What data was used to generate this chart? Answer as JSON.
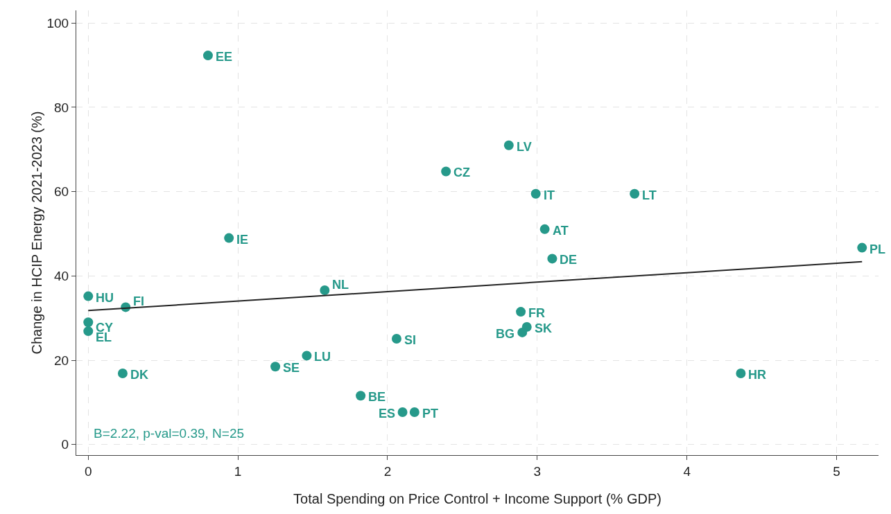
{
  "chart_data": {
    "type": "scatter",
    "xlabel": "Total Spending on Price Control + Income Support (% GDP)",
    "ylabel": "Change in HCIP Energy 2021-2023 (%)",
    "xlim": [
      -0.08,
      5.28
    ],
    "ylim": [
      -2.5,
      103
    ],
    "xticks": [
      0,
      1,
      2,
      3,
      4,
      5
    ],
    "yticks": [
      0,
      20,
      40,
      60,
      80,
      100
    ],
    "grid": true,
    "marker": "circle",
    "series": [
      {
        "color": "#26998a",
        "x": [
          0.8,
          2.81,
          2.39,
          2.99,
          3.65,
          3.05,
          0.94,
          5.17,
          3.1,
          1.58,
          0,
          0.25,
          2.89,
          0,
          2.93,
          0,
          2.9,
          2.06,
          1.46,
          1.25,
          0.23,
          4.36,
          1.82,
          2.1,
          2.18
        ],
        "values": [
          92.3,
          71.0,
          64.8,
          59.5,
          59.5,
          51.1,
          49.0,
          46.7,
          44.1,
          36.6,
          35.2,
          32.6,
          31.5,
          29.0,
          27.9,
          26.9,
          26.6,
          25.1,
          21.1,
          18.5,
          16.9,
          16.9,
          11.6,
          7.7,
          7.7
        ]
      },
      {
        "type": "line",
        "marker": "none",
        "color": "#222222",
        "x": [
          0,
          5.17
        ],
        "values": [
          31.8,
          43.4
        ]
      }
    ],
    "annotations": [
      {
        "text": "EE",
        "x": 0.8,
        "y": 92.3
      },
      {
        "text": "LV",
        "x": 2.81,
        "y": 71.0
      },
      {
        "text": "CZ",
        "x": 2.39,
        "y": 64.8
      },
      {
        "text": "IT",
        "x": 2.99,
        "y": 59.5
      },
      {
        "text": "LT",
        "x": 3.65,
        "y": 59.5
      },
      {
        "text": "AT",
        "x": 3.05,
        "y": 51.1
      },
      {
        "text": "IE",
        "x": 0.94,
        "y": 49.0
      },
      {
        "text": "PL",
        "x": 5.17,
        "y": 46.7
      },
      {
        "text": "DE",
        "x": 3.1,
        "y": 44.1
      },
      {
        "text": "NL",
        "x": 1.58,
        "y": 36.6
      },
      {
        "text": "HU",
        "x": 0,
        "y": 35.2
      },
      {
        "text": "FI",
        "x": 0.25,
        "y": 32.6
      },
      {
        "text": "FR",
        "x": 2.89,
        "y": 31.5
      },
      {
        "text": "CY",
        "x": 0,
        "y": 29.0
      },
      {
        "text": "SK",
        "x": 2.93,
        "y": 27.9
      },
      {
        "text": "EL",
        "x": 0,
        "y": 26.9
      },
      {
        "text": "BG",
        "x": 2.9,
        "y": 26.6
      },
      {
        "text": "SI",
        "x": 2.06,
        "y": 25.1
      },
      {
        "text": "LU",
        "x": 1.46,
        "y": 21.1
      },
      {
        "text": "SE",
        "x": 1.25,
        "y": 18.5
      },
      {
        "text": "DK",
        "x": 0.23,
        "y": 16.9
      },
      {
        "text": "HR",
        "x": 4.36,
        "y": 16.9
      },
      {
        "text": "BE",
        "x": 1.82,
        "y": 11.6
      },
      {
        "text": "ES",
        "x": 2.1,
        "y": 7.7
      },
      {
        "text": "PT",
        "x": 2.18,
        "y": 7.7
      },
      "B=2.22, p-val=0.39, N=25"
    ]
  }
}
